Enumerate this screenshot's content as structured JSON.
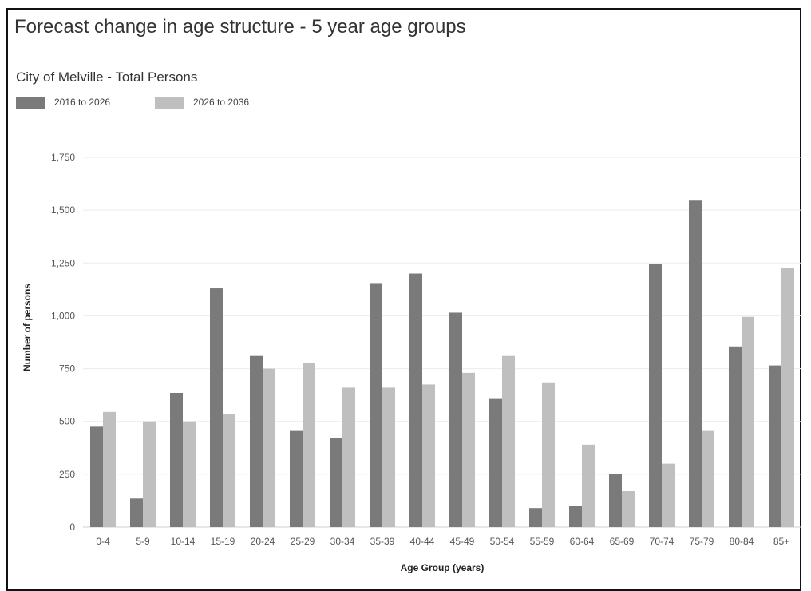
{
  "chart_data": {
    "type": "bar",
    "title": "Forecast change in age structure - 5 year age groups",
    "subtitle": "City of Melville - Total Persons",
    "xlabel": "Age Group (years)",
    "ylabel": "Number of persons",
    "categories": [
      "0-4",
      "5-9",
      "10-14",
      "15-19",
      "20-24",
      "25-29",
      "30-34",
      "35-39",
      "40-44",
      "45-49",
      "50-54",
      "55-59",
      "60-64",
      "65-69",
      "70-74",
      "75-79",
      "80-84",
      "85+"
    ],
    "series": [
      {
        "name": "2016 to 2026",
        "color": "#7a7a7a",
        "values": [
          475,
          135,
          635,
          1130,
          810,
          455,
          420,
          1155,
          1200,
          1015,
          610,
          90,
          100,
          250,
          1245,
          1545,
          855,
          765
        ]
      },
      {
        "name": "2026 to 2036",
        "color": "#bfbfbf",
        "values": [
          545,
          500,
          500,
          535,
          750,
          775,
          660,
          660,
          675,
          730,
          810,
          685,
          390,
          170,
          300,
          455,
          995,
          1225
        ]
      }
    ],
    "ylim": [
      0,
      1750
    ],
    "yticks": [
      0,
      250,
      500,
      750,
      1000,
      1250,
      1500,
      1750
    ],
    "ytick_labels": [
      "0",
      "250",
      "500",
      "750",
      "1,000",
      "1,250",
      "1,500",
      "1,750"
    ],
    "grid": true,
    "legend_position": "top-left"
  }
}
